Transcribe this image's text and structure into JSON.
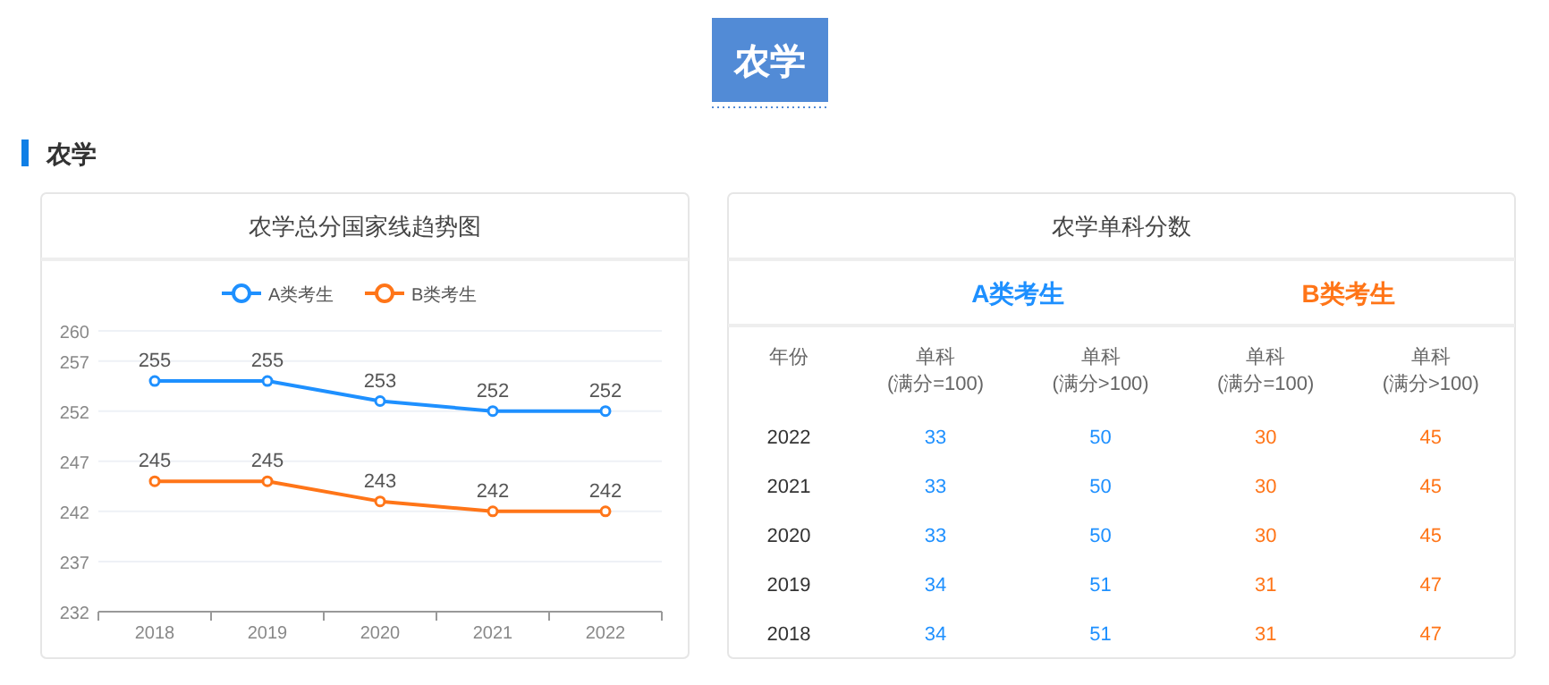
{
  "chart_data": [
    {
      "type": "line",
      "title": "农学总分国家线趋势图",
      "annotations": [
        "农学",
        "农学"
      ],
      "categories": [
        "2018",
        "2019",
        "2020",
        "2021",
        "2022"
      ],
      "series": [
        {
          "name": "A类考生",
          "color": "#1e90ff",
          "values": [
            255,
            255,
            253,
            252,
            252
          ]
        },
        {
          "name": "B类考生",
          "color": "#ff7518",
          "values": [
            245,
            245,
            243,
            242,
            242
          ]
        }
      ],
      "ylim": [
        232,
        260
      ],
      "yticks": [
        232,
        237,
        242,
        247,
        252,
        257,
        260
      ],
      "grid": "y",
      "legend": "top",
      "marker": "circle",
      "line_style": "solid",
      "data_labels": true
    },
    {
      "type": "heatmap",
      "title": "农学单科分数",
      "subtitle": "A类考生",
      "ylabel": "年份",
      "color": "#1e90ff",
      "categories": [
        "单科\n(满分=100)",
        "单科\n(满分>100)"
      ],
      "y_categories": [
        "2022",
        "2021",
        "2020",
        "2019",
        "2018"
      ],
      "cells": [
        [
          33,
          50
        ],
        [
          33,
          50
        ],
        [
          33,
          50
        ],
        [
          34,
          51
        ],
        [
          34,
          51
        ]
      ],
      "data_labels": true
    },
    {
      "type": "heatmap",
      "subtitle": "B类考生",
      "color": "#ff7518",
      "categories": [
        "单科\n(满分=100)",
        "单科\n(满分>100)"
      ],
      "y_categories": [
        "2022",
        "2021",
        "2020",
        "2019",
        "2018"
      ],
      "tick_labels": "x",
      "cells": [
        [
          30,
          45
        ],
        [
          30,
          45
        ],
        [
          30,
          45
        ],
        [
          31,
          47
        ],
        [
          31,
          47
        ]
      ],
      "data_labels": true
    }
  ]
}
